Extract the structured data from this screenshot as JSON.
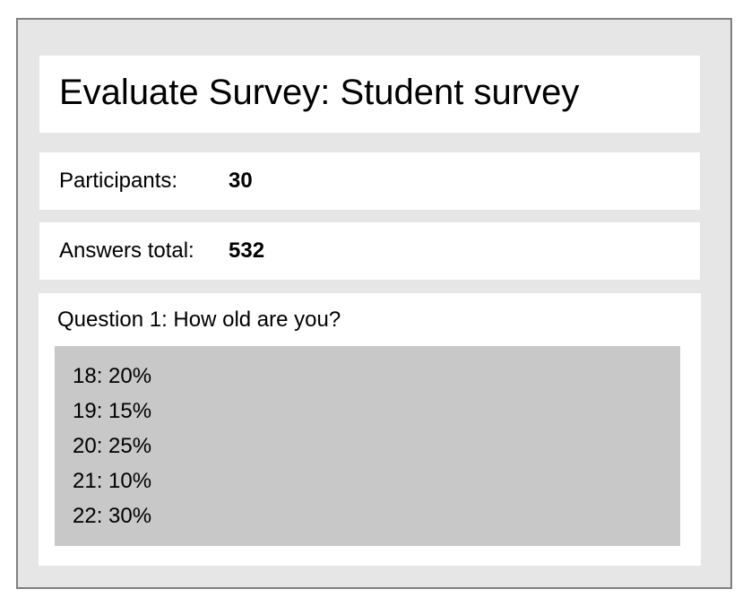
{
  "header": {
    "title": "Evaluate Survey: Student survey"
  },
  "stats": {
    "participants_label": "Participants:",
    "participants_value": "30",
    "answers_label": "Answers total:",
    "answers_value": "532"
  },
  "question": {
    "text": "Question 1: How old are you?",
    "answers": [
      {
        "text": "18: 20%",
        "age": 18,
        "percent": 20
      },
      {
        "text": "19: 15%",
        "age": 19,
        "percent": 15
      },
      {
        "text": "20: 25%",
        "age": 20,
        "percent": 25
      },
      {
        "text": "21: 10%",
        "age": 21,
        "percent": 10
      },
      {
        "text": "22: 30%",
        "age": 22,
        "percent": 30
      }
    ]
  },
  "colors": {
    "frame_background": "#e6e6e6",
    "frame_border": "#7f7f7f",
    "panel_background": "#ffffff",
    "answers_background": "#c8c8c8"
  }
}
